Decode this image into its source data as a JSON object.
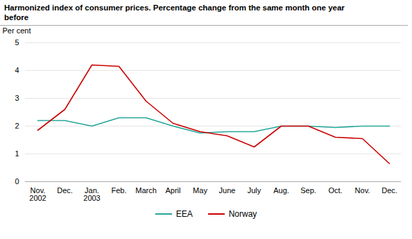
{
  "chart_data": {
    "type": "line",
    "title": "Harmonized index of consumer prices. Percentage change from the same month one year\nbefore",
    "y_label": "Per cent",
    "categories": [
      "Nov.\n2002",
      "Dec.",
      "Jan.\n2003",
      "Feb.",
      "March",
      "April",
      "May",
      "June",
      "July",
      "Aug.",
      "Sep.",
      "Oct.",
      "Nov.",
      "Dec."
    ],
    "series": [
      {
        "name": "EEA",
        "color": "#26A69A",
        "values": [
          2.2,
          2.2,
          2.0,
          2.3,
          2.3,
          2.0,
          1.75,
          1.8,
          1.8,
          2.0,
          2.0,
          1.95,
          2.0,
          2.0
        ]
      },
      {
        "name": "Norway",
        "color": "#CC0000",
        "values": [
          1.85,
          2.6,
          4.2,
          4.15,
          2.9,
          2.1,
          1.8,
          1.65,
          1.25,
          2.0,
          2.0,
          1.6,
          1.55,
          0.65
        ]
      }
    ],
    "ylim": [
      0,
      5
    ],
    "yticks": [
      0,
      1,
      2,
      3,
      4,
      5
    ],
    "grid": true,
    "legend": "bottom"
  }
}
